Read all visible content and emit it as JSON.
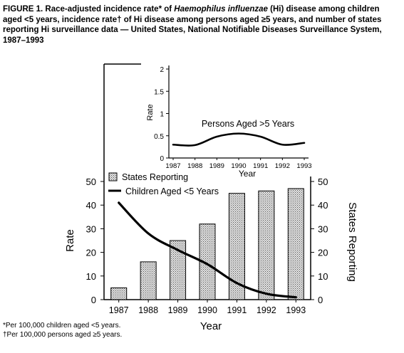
{
  "caption": {
    "label": "FIGURE 1.",
    "part1": " Race-adjusted incidence rate* of ",
    "organism": "Haemophilus influenzae",
    "part2": " (Hi) disease among children aged <5 years, incidence rate† of Hi disease among persons aged ≥5 years, and number of states reporting Hi surveillance data — United States, National Notifiable Diseases Surveillance System, 1987–1993"
  },
  "footnotes": [
    "*Per 100,000 children aged <5 years.",
    "†Per 100,000 persons aged ≥5 years."
  ],
  "chart_data": [
    {
      "type": "bar",
      "categories": [
        "1987",
        "1988",
        "1989",
        "1990",
        "1991",
        "1992",
        "1993"
      ],
      "series": [
        {
          "name": "States Reporting",
          "type": "bar",
          "axis": "right",
          "values": [
            5,
            16,
            25,
            32,
            45,
            46,
            47
          ],
          "color": "#9a9a9a"
        },
        {
          "name": "Children Aged <5 Years",
          "type": "line",
          "axis": "left",
          "values": [
            41,
            28,
            21,
            15,
            7,
            2.5,
            1
          ],
          "color": "#000000"
        }
      ],
      "xlabel": "Year",
      "ylabel": "Rate",
      "y2label": "States Reporting",
      "ylim": [
        0,
        50
      ],
      "y2lim": [
        0,
        50
      ],
      "yticks": [
        "0",
        "10",
        "20",
        "30",
        "40",
        "50"
      ],
      "y2ticks": [
        "0",
        "10",
        "20",
        "30",
        "40",
        "50"
      ],
      "legend": "top-left",
      "grid": false
    },
    {
      "type": "line",
      "title": "Persons Aged >5 Years",
      "categories": [
        "1987",
        "1988",
        "1989",
        "1990",
        "1991",
        "1992",
        "1993"
      ],
      "series": [
        {
          "values": [
            0.3,
            0.29,
            0.48,
            0.55,
            0.48,
            0.3,
            0.34
          ],
          "color": "#000000"
        }
      ],
      "xlabel": "Year",
      "ylabel": "Rate",
      "ylim": [
        0,
        2
      ],
      "yticks": [
        "0",
        "0.5",
        "1",
        "1.5",
        "2"
      ],
      "grid": false
    }
  ]
}
